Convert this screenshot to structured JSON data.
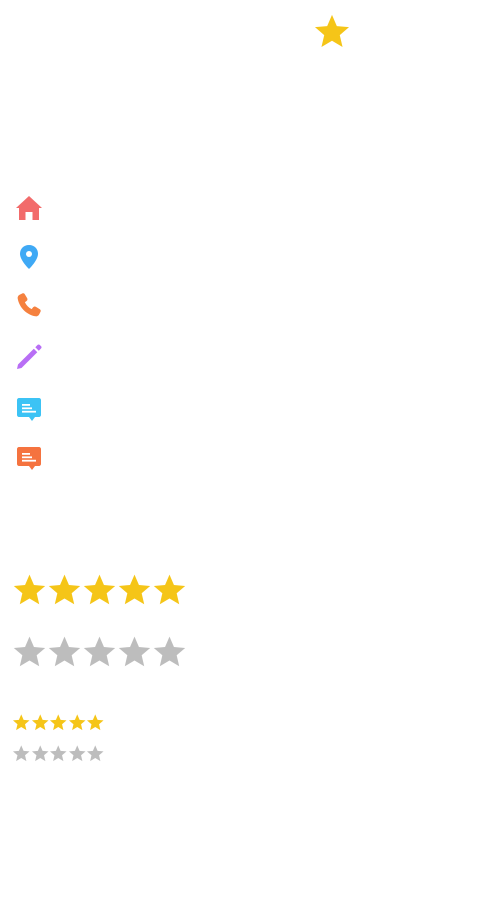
{
  "colors": {
    "star_filled": "#F5C518",
    "star_empty": "#BDBDBD",
    "home": "#F26B6B",
    "location": "#3FA9F5",
    "phone": "#F5813F",
    "edit": "#B86EF5",
    "comment_blue": "#3CC3F5",
    "comment_orange": "#F5733F"
  },
  "favorite": {
    "icon": "star-icon",
    "active": true
  },
  "icons": [
    {
      "name": "home-icon"
    },
    {
      "name": "location-pin-icon"
    },
    {
      "name": "phone-icon"
    },
    {
      "name": "pencil-edit-icon"
    },
    {
      "name": "comment-icon"
    },
    {
      "name": "comment-icon"
    }
  ],
  "ratings": {
    "large_filled": {
      "value": 5,
      "max": 5
    },
    "large_empty": {
      "value": 0,
      "max": 5
    },
    "small_filled": {
      "value": 5,
      "max": 5
    },
    "small_empty": {
      "value": 0,
      "max": 5
    }
  }
}
